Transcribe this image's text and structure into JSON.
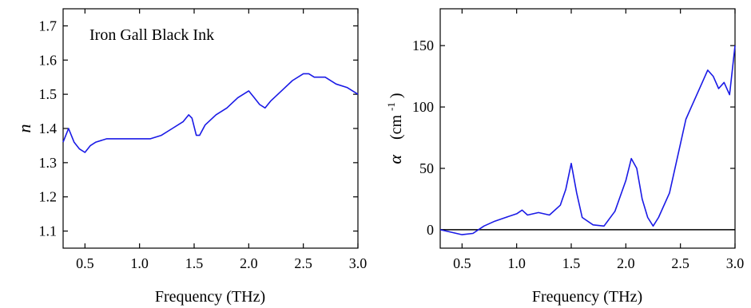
{
  "chart_data": [
    {
      "type": "line",
      "xlabel": "Frequency (THz)",
      "ylabel": "n",
      "xlim": [
        0.3,
        3.0
      ],
      "ylim": [
        1.05,
        1.75
      ],
      "x_ticks": [
        0.5,
        1.0,
        1.5,
        2.0,
        2.5,
        3.0
      ],
      "x_tick_labels": [
        "0.5",
        "1.0",
        "1.5",
        "2.0",
        "2.5",
        "3.0"
      ],
      "y_ticks": [
        1.1,
        1.2,
        1.3,
        1.4,
        1.5,
        1.6,
        1.7
      ],
      "y_tick_labels": [
        "1.1",
        "1.2",
        "1.3",
        "1.4",
        "1.5",
        "1.6",
        "1.7"
      ],
      "annotation": "Iron Gall Black Ink",
      "line_color": "#1a1ae6",
      "series": [
        {
          "x": [
            0.3,
            0.35,
            0.4,
            0.45,
            0.5,
            0.55,
            0.6,
            0.7,
            0.8,
            0.9,
            1.0,
            1.1,
            1.2,
            1.3,
            1.4,
            1.45,
            1.48,
            1.52,
            1.55,
            1.6,
            1.7,
            1.8,
            1.9,
            2.0,
            2.05,
            2.1,
            2.15,
            2.2,
            2.3,
            2.4,
            2.5,
            2.55,
            2.6,
            2.7,
            2.8,
            2.9,
            3.0
          ],
          "y": [
            1.36,
            1.4,
            1.36,
            1.34,
            1.33,
            1.35,
            1.36,
            1.37,
            1.37,
            1.37,
            1.37,
            1.37,
            1.38,
            1.4,
            1.42,
            1.44,
            1.43,
            1.38,
            1.38,
            1.41,
            1.44,
            1.46,
            1.49,
            1.51,
            1.49,
            1.47,
            1.46,
            1.48,
            1.51,
            1.54,
            1.56,
            1.56,
            1.55,
            1.55,
            1.53,
            1.52,
            1.5
          ]
        }
      ]
    },
    {
      "type": "line",
      "xlabel": "Frequency (THz)",
      "ylabel": "α (cm⁻¹)",
      "ylabel_symbol": "α",
      "ylabel_unit_base": "(cm",
      "ylabel_unit_sup": "-1",
      "ylabel_unit_close": ")",
      "xlim": [
        0.3,
        3.0
      ],
      "ylim": [
        -15,
        180
      ],
      "x_ticks": [
        0.5,
        1.0,
        1.5,
        2.0,
        2.5,
        3.0
      ],
      "x_tick_labels": [
        "0.5",
        "1.0",
        "1.5",
        "2.0",
        "2.5",
        "3.0"
      ],
      "y_ticks": [
        0,
        50,
        100,
        150
      ],
      "y_tick_labels": [
        "0",
        "50",
        "100",
        "150"
      ],
      "reference_line_y": 0,
      "line_color": "#1a1ae6",
      "series": [
        {
          "x": [
            0.3,
            0.4,
            0.5,
            0.6,
            0.7,
            0.8,
            0.9,
            1.0,
            1.05,
            1.1,
            1.2,
            1.3,
            1.4,
            1.45,
            1.5,
            1.55,
            1.6,
            1.7,
            1.8,
            1.9,
            2.0,
            2.05,
            2.1,
            2.15,
            2.2,
            2.25,
            2.3,
            2.4,
            2.5,
            2.55,
            2.6,
            2.7,
            2.75,
            2.8,
            2.85,
            2.9,
            2.95,
            3.0
          ],
          "y": [
            0,
            -2,
            -4,
            -3,
            3,
            7,
            10,
            13,
            16,
            12,
            14,
            12,
            20,
            33,
            54,
            30,
            10,
            4,
            3,
            15,
            40,
            58,
            50,
            25,
            10,
            3,
            10,
            30,
            70,
            90,
            100,
            120,
            130,
            125,
            115,
            120,
            110,
            150
          ]
        }
      ]
    }
  ]
}
